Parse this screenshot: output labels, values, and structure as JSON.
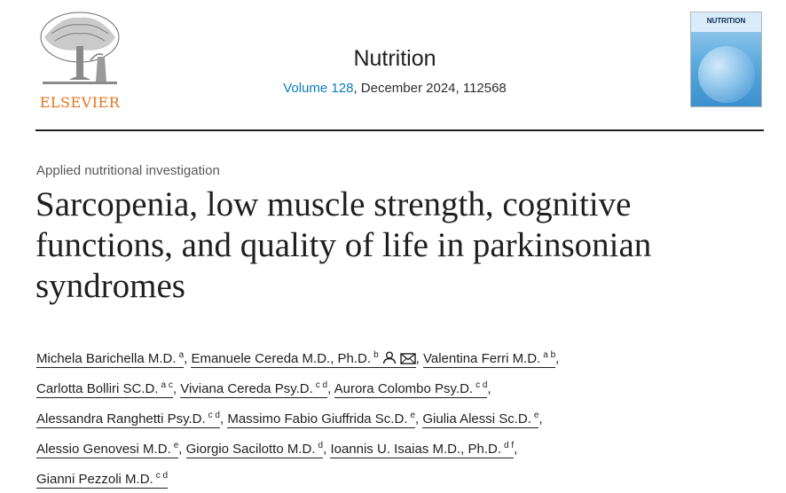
{
  "publisher": {
    "logo_text": "ELSEVIER"
  },
  "journal": {
    "title": "Nutrition",
    "volume_link": "Volume 128",
    "issue_rest": ", December 2024, 112568",
    "cover_title": "NUTRITION"
  },
  "article": {
    "section": "Applied nutritional investigation",
    "title": "Sarcopenia, low muscle strength, cognitive functions, and quality of life in parkinsonian syndromes"
  },
  "icons": {
    "person": "person-icon",
    "mail": "envelope-icon",
    "logo": "elsevier-tree-logo",
    "cover": "journal-cover-thumbnail"
  },
  "colors": {
    "link": "#0c7dbb",
    "logo": "#e9711c",
    "text": "#1f1f1f"
  },
  "authors": [
    {
      "name": "Michela Barichella M.D.",
      "aff": "a",
      "sep": ","
    },
    {
      "name": "Emanuele Cereda M.D., Ph.D.",
      "aff": "b",
      "sep": ","
    },
    {
      "name": "Valentina Ferri M.D.",
      "aff": "a b",
      "sep": ","
    },
    {
      "name": "Carlotta Bolliri SC.D.",
      "aff": "a c",
      "sep": ","
    },
    {
      "name": "Viviana Cereda Psy.D.",
      "aff": "c d",
      "sep": ","
    },
    {
      "name": "Aurora Colombo Psy.D.",
      "aff": "c d",
      "sep": ","
    },
    {
      "name": "Alessandra Ranghetti Psy.D.",
      "aff": "c d",
      "sep": ","
    },
    {
      "name": "Massimo Fabio Giuffrida Sc.D.",
      "aff": "e",
      "sep": ","
    },
    {
      "name": "Giulia Alessi Sc.D.",
      "aff": "e",
      "sep": ","
    },
    {
      "name": "Alessio Genovesi M.D.",
      "aff": "e",
      "sep": ","
    },
    {
      "name": "Giorgio Sacilotto M.D.",
      "aff": "d",
      "sep": ","
    },
    {
      "name": "Ioannis U. Isaias M.D., Ph.D.",
      "aff": "d f",
      "sep": ","
    },
    {
      "name": "Gianni Pezzoli M.D.",
      "aff": "c d",
      "sep": ""
    }
  ]
}
